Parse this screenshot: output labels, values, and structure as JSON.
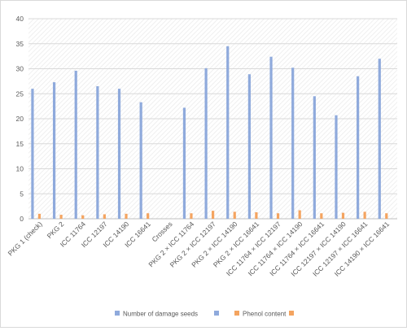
{
  "chart_data": {
    "type": "bar",
    "title": "",
    "xlabel": "",
    "ylabel": "",
    "ylim": [
      0,
      40
    ],
    "yticks": [
      0,
      5,
      10,
      15,
      20,
      25,
      30,
      35,
      40
    ],
    "grid": true,
    "legend_position": "bottom",
    "categories": [
      "PKG 1 (check)",
      "PKG 2",
      "ICC 11764",
      "ICC 12197",
      "ICC 14190",
      "ICC 16641",
      "Crosses",
      "PKG 2 × ICC 11764",
      "PKG 2 × ICC 12197",
      "PKG 2 × ICC 14190",
      "PKG 2 × ICC 16641",
      "ICC 11764 × ICC 12197",
      "ICC 11764 × ICC 14190",
      "ICC 11764 × ICC 16641",
      "ICC 12197 × ICC 14190",
      "ICC 12197 × ICC 16641",
      "ICC 14190 × ICC 16641"
    ],
    "series": [
      {
        "name": "Number of damage seeds",
        "color": "#8FAADC",
        "values": [
          26.0,
          27.3,
          29.6,
          26.5,
          26.0,
          23.3,
          null,
          22.2,
          30.1,
          34.5,
          28.9,
          32.4,
          30.2,
          24.5,
          20.7,
          28.5,
          32.0
        ]
      },
      {
        "name": "Phenol content",
        "color": "#F4A460",
        "values": [
          1.0,
          0.8,
          0.7,
          0.9,
          1.0,
          1.1,
          null,
          1.1,
          1.6,
          1.4,
          1.3,
          1.1,
          1.7,
          1.1,
          1.2,
          1.4,
          1.1
        ]
      }
    ]
  },
  "legend": {
    "marker_label_a": "",
    "marker_label_b": ""
  }
}
